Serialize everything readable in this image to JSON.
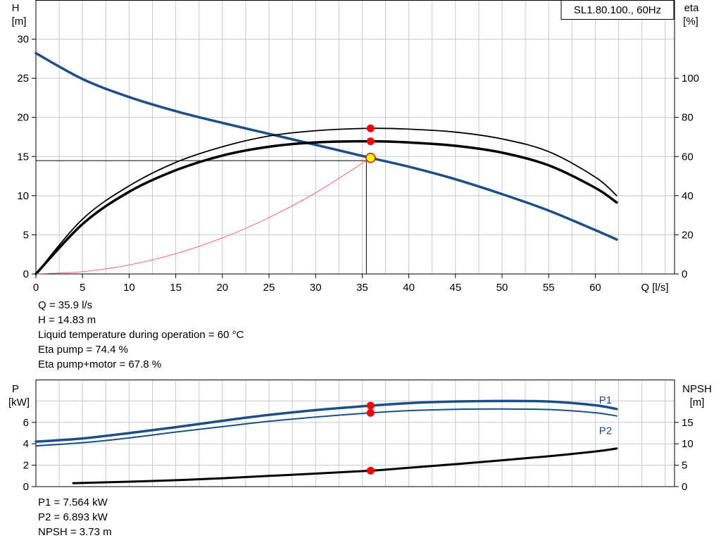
{
  "colors": {
    "curve_blue": "#1b4f85",
    "grid": "#c8c8c8",
    "marker_red": "#ff0000",
    "marker_yellow": "#ffff00",
    "system_curve": "#ff4040"
  },
  "top_readouts": [
    "Q = 35.9 l/s",
    "H = 14.83 m",
    "Liquid temperature during operation = 60 °C",
    "Eta pump = 74.4 %",
    "Eta pump+motor = 67.8 %"
  ],
  "bottom_readouts": [
    "P1 = 7.564 kW",
    "P2 = 6.893 kW",
    "NPSH = 3.73 m"
  ],
  "chart_data": [
    {
      "type": "line",
      "legend_box": "SL1.80.100., 60Hz",
      "xlabel": "Q [l/s]",
      "x_ticks": [
        0,
        5,
        10,
        15,
        20,
        25,
        30,
        35,
        40,
        45,
        50,
        55,
        60
      ],
      "xlim": [
        0,
        68.5
      ],
      "y_left_label": [
        "H",
        "[m]"
      ],
      "y_left_ticks": [
        0,
        5,
        10,
        15,
        20,
        25,
        30
      ],
      "y_left_lim": [
        0,
        35
      ],
      "y_right_label": [
        "eta",
        "[%]"
      ],
      "y_right_ticks": [
        0,
        20,
        40,
        60,
        80,
        100
      ],
      "y_right_lim": [
        0,
        140
      ],
      "grid": true,
      "duty_point": {
        "Q": 35.9,
        "H": 14.83,
        "eta_pump": 74.4,
        "eta_pump_motor": 67.8
      },
      "series": [
        {
          "axis": "left",
          "color": "#1b4f85",
          "width": 3.5,
          "x": [
            0,
            5,
            10,
            15,
            20,
            25,
            30,
            35.9,
            40,
            45,
            50,
            55,
            60,
            62.3
          ],
          "y": [
            28.2,
            24.9,
            22.6,
            20.8,
            19.3,
            17.9,
            16.5,
            14.83,
            13.7,
            12.1,
            10.2,
            8.1,
            5.6,
            4.4
          ]
        },
        {
          "axis": "right",
          "color": "#000000",
          "width": 1.8,
          "x": [
            0,
            5,
            10,
            15,
            20,
            25,
            30,
            35.9,
            40,
            45,
            50,
            55,
            60,
            62.3
          ],
          "y": [
            0,
            28,
            45,
            57,
            65,
            70.5,
            73.2,
            74.4,
            74.0,
            72.5,
            69.0,
            62.5,
            49.5,
            40.0
          ]
        },
        {
          "axis": "right",
          "color": "#000000",
          "width": 3.5,
          "x": [
            0,
            5,
            10,
            15,
            20,
            25,
            30,
            35.9,
            40,
            45,
            50,
            55,
            60,
            62.3
          ],
          "y": [
            0,
            25.5,
            42,
            53,
            60.5,
            65,
            67.2,
            67.8,
            67.2,
            65.5,
            62.0,
            55.5,
            44.0,
            36.5
          ]
        },
        {
          "axis": "left",
          "color": "#ff4040",
          "width": 0.8,
          "x": [
            0,
            5,
            10,
            15,
            20,
            25,
            30,
            35.9
          ],
          "y": [
            0,
            0.29,
            1.15,
            2.59,
            4.6,
            7.19,
            10.36,
            14.83
          ]
        }
      ],
      "markers": [
        {
          "x": 35.9,
          "y": 74.4,
          "axis": "right",
          "fill": "#ff0000"
        },
        {
          "x": 35.9,
          "y": 67.8,
          "axis": "right",
          "fill": "#ff0000"
        },
        {
          "x": 35.9,
          "y": 14.83,
          "axis": "left",
          "fill": "#ffff00"
        }
      ]
    },
    {
      "type": "line",
      "y_left_label": [
        "P",
        "[kW]"
      ],
      "y_left_ticks": [
        0,
        2,
        4,
        6
      ],
      "y_left_lim": [
        0,
        10
      ],
      "y_right_label": [
        "NPSH",
        "[m]"
      ],
      "y_right_ticks": [
        0,
        5,
        10,
        15
      ],
      "y_right_lim": [
        0,
        25
      ],
      "xlim": [
        0,
        68.5
      ],
      "grid": true,
      "series": [
        {
          "name": "P1",
          "axis": "left",
          "color": "#1b4f85",
          "width": 3.5,
          "x": [
            0,
            5,
            10,
            15,
            20,
            25,
            30,
            35.9,
            40,
            45,
            50,
            55,
            60,
            62.3
          ],
          "y": [
            4.2,
            4.5,
            5.0,
            5.55,
            6.15,
            6.7,
            7.15,
            7.564,
            7.8,
            7.95,
            8.0,
            7.95,
            7.6,
            7.25
          ]
        },
        {
          "name": "P2",
          "axis": "left",
          "color": "#1b4f85",
          "width": 2,
          "x": [
            0,
            5,
            10,
            15,
            20,
            25,
            30,
            35.9,
            40,
            45,
            50,
            55,
            60,
            62.3
          ],
          "y": [
            3.8,
            4.1,
            4.55,
            5.1,
            5.6,
            6.1,
            6.5,
            6.893,
            7.1,
            7.22,
            7.25,
            7.2,
            6.9,
            6.6
          ]
        },
        {
          "axis": "right",
          "color": "#000000",
          "width": 3,
          "x": [
            4,
            10,
            15,
            20,
            25,
            30,
            35.9,
            40,
            45,
            50,
            55,
            60,
            62.3
          ],
          "y": [
            0.8,
            1.15,
            1.5,
            1.95,
            2.5,
            3.05,
            3.73,
            4.4,
            5.25,
            6.15,
            7.1,
            8.2,
            8.9
          ]
        }
      ],
      "markers": [
        {
          "x": 35.9,
          "y": 7.564,
          "axis": "left",
          "fill": "#ff0000"
        },
        {
          "x": 35.9,
          "y": 6.893,
          "axis": "left",
          "fill": "#ff0000"
        },
        {
          "x": 35.9,
          "y": 3.73,
          "axis": "right",
          "fill": "#ff0000"
        }
      ]
    }
  ]
}
